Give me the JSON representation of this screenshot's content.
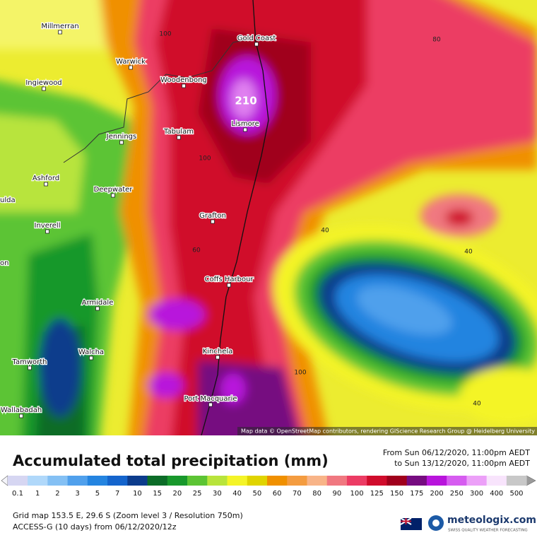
{
  "map": {
    "places": [
      "Millmerran",
      "Warwick",
      "Ingiewood",
      "Woodenbong",
      "Gold Coast",
      "Lismore",
      "Tabulam",
      "Jennings",
      "Ashford",
      "Deepwater",
      "ulda",
      "Grafton",
      "Inverell",
      "on",
      "Coffs Harbour",
      "Armidale",
      "Walcha",
      "Kinchela",
      "Tamworth",
      "Port Macquarie",
      "Wallabadah"
    ],
    "contour_labels": [
      "100",
      "80",
      "100",
      "40",
      "60",
      "40",
      "100",
      "40"
    ],
    "peak_label": "210",
    "attribution": "Map data © OpenStreetMap contributors, rendering GIScience Research Group @ Heidelberg University"
  },
  "legend": {
    "title": "Accumulated total precipitation (mm)",
    "period_from": "From Sun 06/12/2020, 11:00pm AEDT",
    "period_to": "to Sun 13/12/2020, 11:00pm AEDT",
    "levels": [
      0.1,
      1,
      2,
      3,
      5,
      7,
      10,
      15,
      20,
      25,
      30,
      40,
      50,
      60,
      70,
      80,
      90,
      100,
      125,
      150,
      175,
      200,
      250,
      300,
      400,
      500
    ],
    "colors": [
      "#d6d6f2",
      "#b0d8fa",
      "#84c0f4",
      "#50a0ec",
      "#2484e0",
      "#1464cc",
      "#0c3c8c",
      "#0c6c28",
      "#18982c",
      "#5cc434",
      "#b8e43c",
      "#f4f428",
      "#e0d400",
      "#f09000",
      "#f49c40",
      "#f8b488",
      "#f07880",
      "#ec3c64",
      "#d00c2c",
      "#a0001c",
      "#760c80",
      "#b814dc",
      "#d65cf0",
      "#eca0f8",
      "#f8e4fc",
      "#c8c8c8"
    ]
  },
  "footer": {
    "grid": "Grid map 153.5 E, 29.6 S (Zoom level 3 / Resolution 750m)",
    "model": "ACCESS-G (10 days) from 06/12/2020/12z",
    "brand": "meteologix.com",
    "tagline": "SWISS QUALITY WEATHER FORECASTING"
  }
}
